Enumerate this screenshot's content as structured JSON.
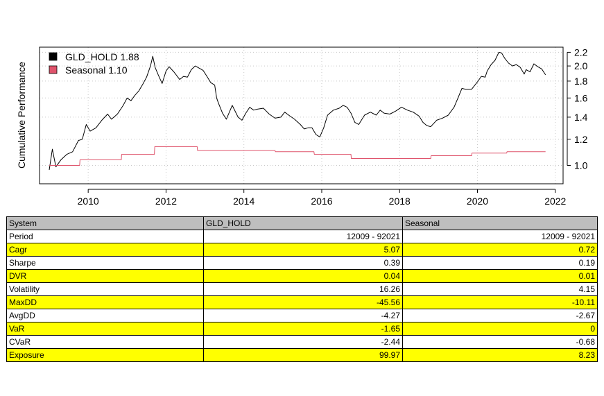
{
  "chart_data": {
    "type": "line",
    "ylabel": "Cumulative Performance",
    "xlim": [
      2008.75,
      2022.2
    ],
    "ylim": [
      0.88,
      2.28
    ],
    "y_scale": "log",
    "x_ticks": [
      2010,
      2012,
      2014,
      2016,
      2018,
      2020,
      2022
    ],
    "x_tick_labels": [
      "2010",
      "2012",
      "2014",
      "2016",
      "2018",
      "2020",
      "2022"
    ],
    "y_ticks": [
      1.0,
      1.2,
      1.4,
      1.6,
      1.8,
      2.0,
      2.2
    ],
    "y_tick_labels": [
      "1.0",
      "1.2",
      "1.4",
      "1.6",
      "1.8",
      "2.0",
      "2.2"
    ],
    "grid": true,
    "legend_position": "top-left",
    "series": [
      {
        "name": "GLD_HOLD 1.88",
        "color": "#000000",
        "x": [
          2009.0,
          2009.08,
          2009.17,
          2009.3,
          2009.45,
          2009.6,
          2009.75,
          2009.85,
          2009.95,
          2010.05,
          2010.2,
          2010.35,
          2010.5,
          2010.6,
          2010.75,
          2010.9,
          2011.0,
          2011.1,
          2011.2,
          2011.3,
          2011.4,
          2011.5,
          2011.6,
          2011.66,
          2011.72,
          2011.8,
          2011.9,
          2012.0,
          2012.08,
          2012.2,
          2012.35,
          2012.45,
          2012.55,
          2012.65,
          2012.75,
          2012.85,
          2012.95,
          2013.05,
          2013.15,
          2013.25,
          2013.3,
          2013.35,
          2013.45,
          2013.55,
          2013.7,
          2013.85,
          2013.95,
          2014.05,
          2014.15,
          2014.25,
          2014.35,
          2014.5,
          2014.65,
          2014.8,
          2014.95,
          2015.05,
          2015.15,
          2015.3,
          2015.45,
          2015.55,
          2015.65,
          2015.75,
          2015.85,
          2015.95,
          2016.05,
          2016.15,
          2016.3,
          2016.45,
          2016.55,
          2016.65,
          2016.75,
          2016.85,
          2016.95,
          2017.1,
          2017.25,
          2017.4,
          2017.5,
          2017.6,
          2017.75,
          2017.9,
          2018.05,
          2018.2,
          2018.35,
          2018.5,
          2018.6,
          2018.7,
          2018.8,
          2018.95,
          2019.1,
          2019.25,
          2019.4,
          2019.5,
          2019.6,
          2019.7,
          2019.85,
          2020.0,
          2020.1,
          2020.2,
          2020.25,
          2020.35,
          2020.45,
          2020.55,
          2020.62,
          2020.7,
          2020.8,
          2020.9,
          2021.0,
          2021.1,
          2021.2,
          2021.25,
          2021.35,
          2021.45,
          2021.55,
          2021.65,
          2021.75
        ],
        "y": [
          0.97,
          1.12,
          0.99,
          1.04,
          1.08,
          1.1,
          1.19,
          1.2,
          1.33,
          1.27,
          1.3,
          1.37,
          1.43,
          1.38,
          1.43,
          1.52,
          1.6,
          1.57,
          1.63,
          1.68,
          1.76,
          1.85,
          2.0,
          2.14,
          1.98,
          1.88,
          1.77,
          1.93,
          1.99,
          1.92,
          1.82,
          1.86,
          1.85,
          1.95,
          2.0,
          1.97,
          1.94,
          1.86,
          1.78,
          1.75,
          1.6,
          1.54,
          1.44,
          1.38,
          1.52,
          1.4,
          1.37,
          1.44,
          1.5,
          1.47,
          1.48,
          1.49,
          1.43,
          1.39,
          1.4,
          1.45,
          1.42,
          1.38,
          1.33,
          1.29,
          1.3,
          1.3,
          1.24,
          1.22,
          1.3,
          1.42,
          1.47,
          1.49,
          1.52,
          1.5,
          1.44,
          1.35,
          1.33,
          1.42,
          1.45,
          1.42,
          1.47,
          1.44,
          1.43,
          1.46,
          1.5,
          1.47,
          1.45,
          1.41,
          1.35,
          1.32,
          1.31,
          1.37,
          1.39,
          1.42,
          1.5,
          1.6,
          1.71,
          1.7,
          1.7,
          1.79,
          1.86,
          1.85,
          1.93,
          2.02,
          2.08,
          2.2,
          2.19,
          2.11,
          2.04,
          2.0,
          2.02,
          1.98,
          1.89,
          1.95,
          1.92,
          2.03,
          1.99,
          1.96,
          1.88
        ]
      },
      {
        "name": "Seasonal 1.10",
        "color": "#df536b",
        "x": [
          2009.0,
          2009.78,
          2009.79,
          2010.85,
          2010.86,
          2011.7,
          2011.71,
          2012.8,
          2012.81,
          2013.65,
          2013.66,
          2014.8,
          2014.81,
          2015.8,
          2015.81,
          2016.75,
          2016.76,
          2017.8,
          2017.81,
          2018.8,
          2018.81,
          2019.85,
          2019.86,
          2020.75,
          2020.76,
          2021.75
        ],
        "y": [
          1.0,
          1.0,
          1.04,
          1.04,
          1.08,
          1.08,
          1.14,
          1.14,
          1.11,
          1.11,
          1.11,
          1.11,
          1.1,
          1.1,
          1.08,
          1.08,
          1.05,
          1.05,
          1.05,
          1.05,
          1.07,
          1.07,
          1.09,
          1.09,
          1.1,
          1.1
        ]
      }
    ]
  },
  "legend": [
    {
      "label": "GLD_HOLD 1.88",
      "color": "#000000"
    },
    {
      "label": "Seasonal 1.10",
      "color": "#df536b"
    }
  ],
  "table": {
    "header": [
      "System",
      "GLD_HOLD",
      "Seasonal"
    ],
    "header_bg": "#bebebe",
    "highlight_color": "#ffff00",
    "rows": [
      {
        "label": "Period",
        "values": [
          "12009 - 92021",
          "12009 - 92021"
        ],
        "highlight": false
      },
      {
        "label": "Cagr",
        "values": [
          "5.07",
          "0.72"
        ],
        "highlight": true
      },
      {
        "label": "Sharpe",
        "values": [
          "0.39",
          "0.19"
        ],
        "highlight": false
      },
      {
        "label": "DVR",
        "values": [
          "0.04",
          "0.01"
        ],
        "highlight": true
      },
      {
        "label": "Volatility",
        "values": [
          "16.26",
          "4.15"
        ],
        "highlight": false
      },
      {
        "label": "MaxDD",
        "values": [
          "-45.56",
          "-10.11"
        ],
        "highlight": true
      },
      {
        "label": "AvgDD",
        "values": [
          "-4.27",
          "-2.67"
        ],
        "highlight": false
      },
      {
        "label": "VaR",
        "values": [
          "-1.65",
          "0"
        ],
        "highlight": true
      },
      {
        "label": "CVaR",
        "values": [
          "-2.44",
          "-0.68"
        ],
        "highlight": false
      },
      {
        "label": "Exposure",
        "values": [
          "99.97",
          "8.23"
        ],
        "highlight": true
      }
    ]
  }
}
